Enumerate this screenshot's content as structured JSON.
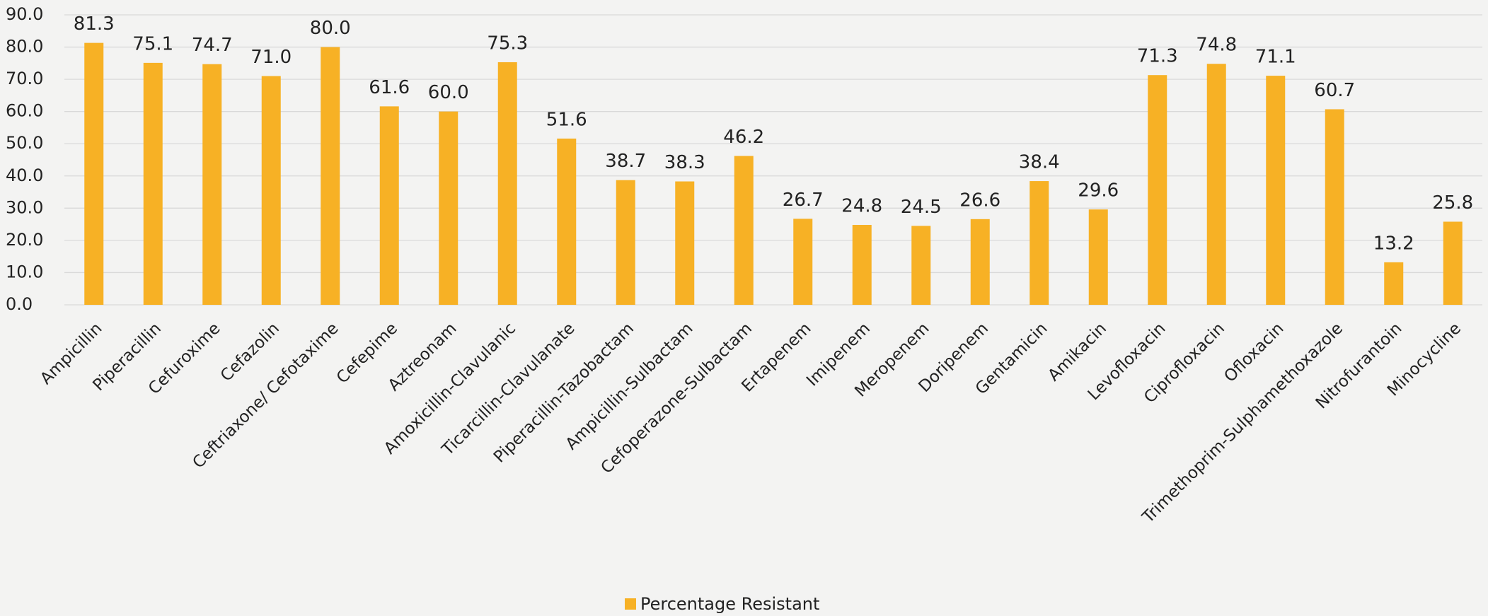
{
  "chart_data": {
    "type": "bar",
    "categories": [
      "Ampicillin",
      "Piperacillin",
      "Cefuroxime",
      "Cefazolin",
      "Ceftriaxone/ Cefotaxime",
      "Cefepime",
      "Aztreonam",
      "Amoxicillin-Clavulanic",
      "Ticarcillin-Clavulanate",
      "Piperacillin-Tazobactam",
      "Ampicillin-Sulbactam",
      "Cefoperazone-Sulbactam",
      "Ertapenem",
      "Imipenem",
      "Meropenem",
      "Doripenem",
      "Gentamicin",
      "Amikacin",
      "Levofloxacin",
      "Ciprofloxacin",
      "Ofloxacin",
      "Trimethoprim-Sulphamethoxazole",
      "Nitrofurantoin",
      "Minocycline"
    ],
    "series": [
      {
        "name": "Percentage Resistant",
        "color": "#f7b125",
        "values": [
          81.3,
          75.1,
          74.7,
          71.0,
          80.0,
          61.6,
          60.0,
          75.3,
          51.6,
          38.7,
          38.3,
          46.2,
          26.7,
          24.8,
          24.5,
          26.6,
          38.4,
          29.6,
          71.3,
          74.8,
          71.1,
          60.7,
          13.2,
          25.8
        ],
        "value_labels": [
          "81.3",
          "75.1",
          "74.7",
          "71.0",
          "80.0",
          "61.6",
          "60.0",
          "75.3",
          "51.6",
          "38.7",
          "38.3",
          "46.2",
          "26.7",
          "24.8",
          "24.5",
          "26.6",
          "38.4",
          "29.6",
          "71.3",
          "74.8",
          "71.1",
          "60.7",
          "13.2",
          "25.8"
        ]
      }
    ],
    "ylim": [
      0,
      90
    ],
    "yticks": [
      {
        "value": 0,
        "label": "0.0"
      },
      {
        "value": 10,
        "label": "10.0"
      },
      {
        "value": 20,
        "label": "20.0"
      },
      {
        "value": 30,
        "label": "30.0"
      },
      {
        "value": 40,
        "label": "40.0"
      },
      {
        "value": 50,
        "label": "50.0"
      },
      {
        "value": 60,
        "label": "60.0"
      },
      {
        "value": 70,
        "label": "70.0"
      },
      {
        "value": 80,
        "label": "80.0"
      },
      {
        "value": 90,
        "label": "90.0"
      }
    ],
    "grid": true,
    "legend": "bottom"
  }
}
